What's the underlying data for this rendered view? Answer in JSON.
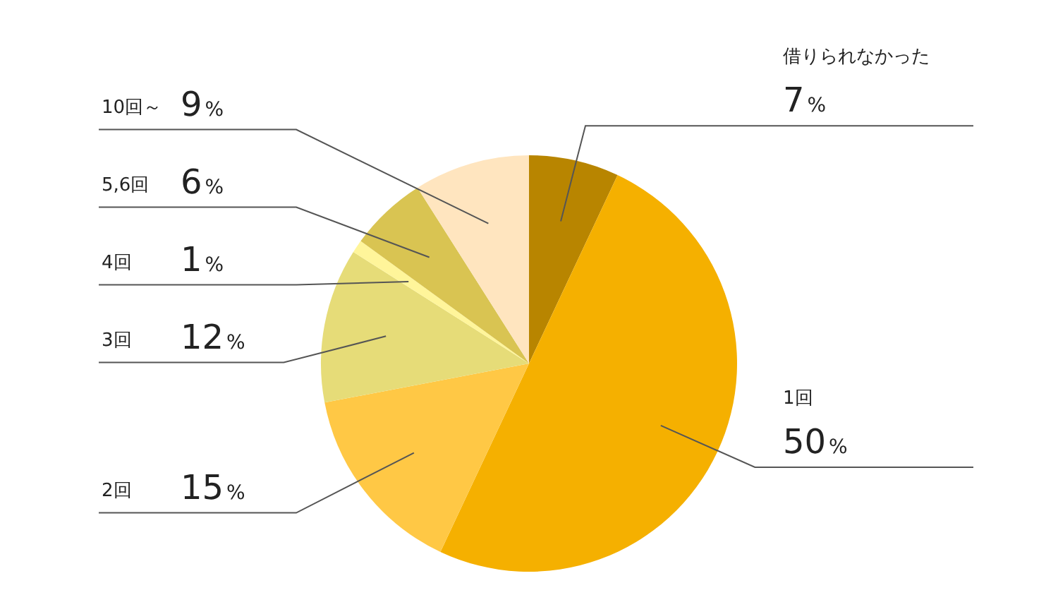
{
  "chart_data": {
    "type": "pie",
    "categories": [
      "借りられなかった",
      "1回",
      "2回",
      "3回",
      "4回",
      "5,6回",
      "10回～"
    ],
    "values": [
      7,
      50,
      15,
      12,
      1,
      6,
      9
    ],
    "value_labels": [
      "7%",
      "50%",
      "15%",
      "12%",
      "1%",
      "6%",
      "9%"
    ],
    "colors": [
      "#b88500",
      "#f5b000",
      "#ffc845",
      "#e6dc78",
      "#fff59a",
      "#d9c452",
      "#ffe5bf"
    ],
    "legend": false
  }
}
